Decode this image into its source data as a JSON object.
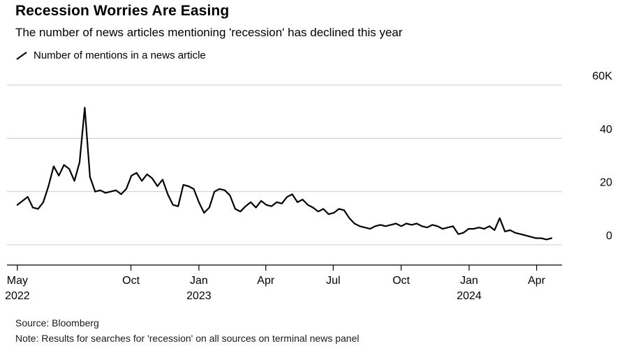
{
  "header": {
    "title": "Recession Worries Are Easing",
    "subtitle": "The number of news articles mentioning 'recession' has declined this year"
  },
  "legend": {
    "label": "Number of mentions in a news article"
  },
  "footer": {
    "source": "Source: Bloomberg",
    "note": "Note: Results for searches for 'recession' on all sources on terminal news panel"
  },
  "colors": {
    "line": "#000000",
    "grid": "#cccccc",
    "axis": "#000000",
    "text": "#000000"
  },
  "chart_data": {
    "type": "line",
    "title": "Recession Worries Are Easing",
    "subtitle": "The number of news articles mentioning 'recession' has declined this year",
    "x_unit": "weeks since 2022-05-01",
    "x_domain": [
      -2,
      105
    ],
    "ylim": [
      0,
      60
    ],
    "y_unit": "thousands of mentions",
    "grid": true,
    "legend_position": "top-left",
    "y_ticks": [
      {
        "value": 0,
        "label": "0"
      },
      {
        "value": 20,
        "label": "20"
      },
      {
        "value": 40,
        "label": "40"
      },
      {
        "value": 60,
        "label": "60K"
      }
    ],
    "x_ticks": [
      {
        "week": 0,
        "label": "May",
        "year": "2022"
      },
      {
        "week": 21.9,
        "label": "Oct",
        "year": ""
      },
      {
        "week": 35.0,
        "label": "Jan",
        "year": "2023"
      },
      {
        "week": 47.9,
        "label": "Apr",
        "year": ""
      },
      {
        "week": 60.9,
        "label": "Jul",
        "year": ""
      },
      {
        "week": 74.0,
        "label": "Oct",
        "year": ""
      },
      {
        "week": 87.1,
        "label": "Jan",
        "year": "2024"
      },
      {
        "week": 100.1,
        "label": "Apr",
        "year": ""
      }
    ],
    "series": [
      {
        "name": "Number of mentions in a news article",
        "values": [
          15,
          16.5,
          18,
          14,
          13.5,
          16,
          22,
          29.5,
          26,
          30,
          28.5,
          24,
          31,
          51.5,
          25.5,
          20,
          20.5,
          19.5,
          20,
          20.5,
          19,
          21,
          26,
          27,
          24,
          26.5,
          25,
          22,
          24.5,
          19,
          15,
          14.5,
          22.5,
          22,
          21,
          16,
          12,
          14,
          20,
          21,
          20.5,
          18.5,
          13.5,
          12.5,
          14.5,
          16,
          14,
          16.5,
          15,
          14.5,
          16,
          15.5,
          18,
          19,
          16,
          17,
          15,
          14,
          12.5,
          13.5,
          11.5,
          12,
          13.5,
          13,
          10,
          8,
          7,
          6.5,
          6,
          7,
          7.5,
          7,
          7.5,
          8,
          7,
          8,
          7.5,
          8,
          7,
          6.5,
          7.5,
          7,
          6,
          6.5,
          7,
          4,
          4.5,
          6,
          6,
          6.5,
          6,
          7,
          5.5,
          10,
          5,
          5.5,
          4.5,
          4,
          3.5,
          3,
          2.5,
          2.5,
          2,
          2.5
        ]
      }
    ]
  }
}
